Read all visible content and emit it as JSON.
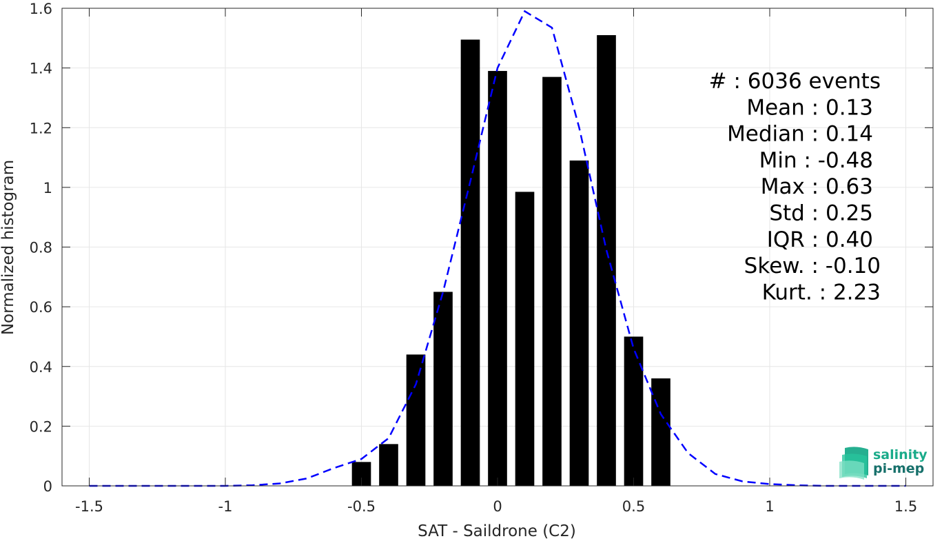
{
  "chart_data": {
    "type": "bar",
    "xlabel": "SAT - Saildrone (C2)",
    "ylabel": "Normalized histogram",
    "xlim": [
      -1.6,
      1.6
    ],
    "ylim": [
      0,
      1.6
    ],
    "grid": true,
    "x_ticks": [
      -1.5,
      -1,
      -0.5,
      0,
      0.5,
      1,
      1.5
    ],
    "x_tick_labels": [
      "-1.5",
      "-1",
      "-0.5",
      "0",
      "0.5",
      "1",
      "1.5"
    ],
    "y_ticks": [
      0,
      0.2,
      0.4,
      0.6,
      0.8,
      1,
      1.2,
      1.4,
      1.6
    ],
    "y_tick_labels": [
      "0",
      "0.2",
      "0.4",
      "0.6",
      "0.8",
      "1",
      "1.2",
      "1.4",
      "1.6"
    ],
    "bar_width": 0.07,
    "bar_color": "#000000",
    "bars": {
      "x": [
        -0.5,
        -0.4,
        -0.3,
        -0.2,
        -0.1,
        0.0,
        0.1,
        0.2,
        0.3,
        0.4,
        0.5,
        0.6
      ],
      "values": [
        0.08,
        0.14,
        0.44,
        0.65,
        1.495,
        1.39,
        0.985,
        1.37,
        1.09,
        1.51,
        0.5,
        0.36
      ]
    },
    "fit_curve": {
      "style": "dashed",
      "color": "#0000ff",
      "x": [
        -1.5,
        -1.4,
        -1.3,
        -1.2,
        -1.1,
        -1.0,
        -0.9,
        -0.8,
        -0.7,
        -0.6,
        -0.5,
        -0.4,
        -0.3,
        -0.2,
        -0.1,
        0.0,
        0.1,
        0.2,
        0.3,
        0.4,
        0.5,
        0.6,
        0.7,
        0.8,
        0.9,
        1.0,
        1.1,
        1.2,
        1.3,
        1.4,
        1.5
      ],
      "y": [
        0,
        0,
        0,
        0,
        0,
        0,
        0.002,
        0.008,
        0.025,
        0.06,
        0.09,
        0.16,
        0.34,
        0.65,
        1.02,
        1.4,
        1.59,
        1.535,
        1.2,
        0.79,
        0.46,
        0.24,
        0.11,
        0.04,
        0.015,
        0.006,
        0.002,
        0,
        0,
        0,
        0
      ]
    },
    "annotations": [
      "#  : 6036 events",
      "Mean : 0.13",
      "Median : 0.14",
      "Min : -0.48",
      "Max : 0.63",
      "Std : 0.25",
      "IQR : 0.40",
      "Skew. : -0.10",
      "Kurt. : 2.23"
    ]
  },
  "logo": {
    "line1": "salinity",
    "line2": "pi-mep",
    "color1": "#1aab8a",
    "color2": "#17706b"
  }
}
